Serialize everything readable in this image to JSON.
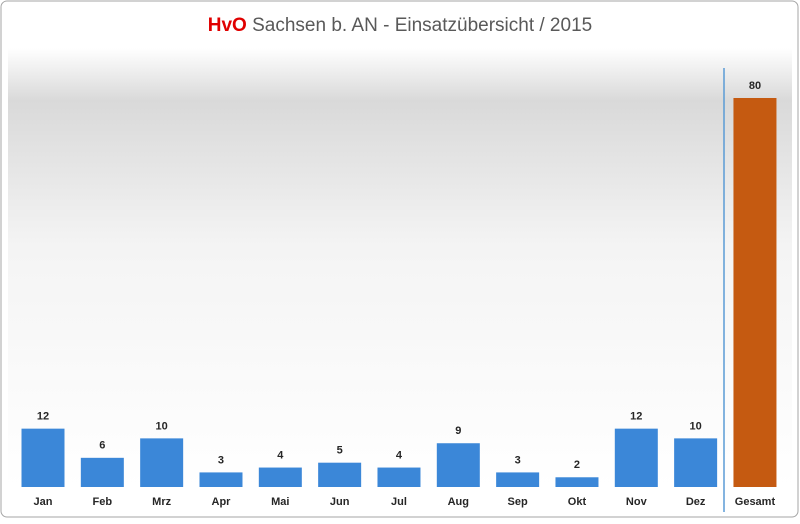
{
  "chart_data": {
    "type": "bar",
    "title": [
      "HvO",
      "Sachsen b. AN -  Einsatzübersicht / 2015"
    ],
    "title_colors": [
      "#e00000",
      "#595959"
    ],
    "categories": [
      "Jan",
      "Feb",
      "Mrz",
      "Apr",
      "Mai",
      "Jun",
      "Jul",
      "Aug",
      "Sep",
      "Okt",
      "Nov",
      "Dez",
      "Gesamt"
    ],
    "values": [
      12,
      6,
      10,
      3,
      4,
      5,
      4,
      9,
      3,
      2,
      12,
      10,
      80
    ],
    "colors": [
      "#3b87d8",
      "#3b87d8",
      "#3b87d8",
      "#3b87d8",
      "#3b87d8",
      "#3b87d8",
      "#3b87d8",
      "#3b87d8",
      "#3b87d8",
      "#3b87d8",
      "#3b87d8",
      "#3b87d8",
      "#c55a11"
    ],
    "ylim": [
      0,
      80
    ]
  }
}
